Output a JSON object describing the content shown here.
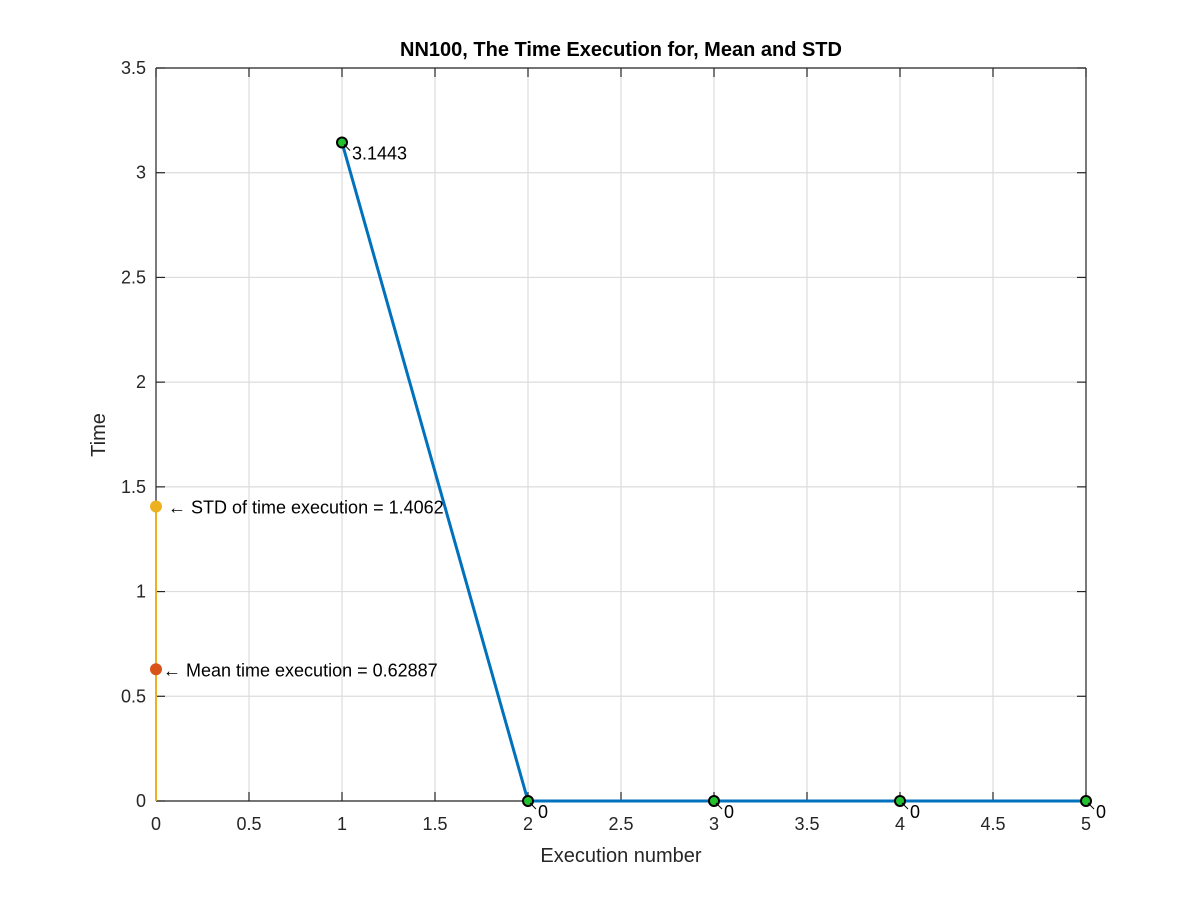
{
  "chart_data": {
    "type": "line",
    "title": "NN100, The Time Execution for, Mean and STD",
    "xlabel": "Execution number",
    "ylabel": "Time",
    "xlim": [
      0,
      5
    ],
    "ylim": [
      0,
      3.5
    ],
    "grid": true,
    "xticks": [
      0,
      0.5,
      1,
      1.5,
      2,
      2.5,
      3,
      3.5,
      4,
      4.5,
      5
    ],
    "xtick_labels": [
      "0",
      "0.5",
      "1",
      "1.5",
      "2",
      "2.5",
      "3",
      "3.5",
      "4",
      "4.5",
      "5"
    ],
    "yticks": [
      0,
      0.5,
      1,
      1.5,
      2,
      2.5,
      3,
      3.5
    ],
    "ytick_labels": [
      "0",
      "0.5",
      "1",
      "1.5",
      "2",
      "2.5",
      "3",
      "3.5"
    ],
    "series": [
      {
        "x": [
          1,
          2,
          3,
          4,
          5
        ],
        "values": [
          3.1443,
          0,
          0,
          0,
          0
        ],
        "point_labels": [
          "3.1443",
          "0",
          "0",
          "0",
          "0"
        ],
        "color": "#0072BD",
        "marker_fill": "#22C22E",
        "marker_edge": "#000000"
      }
    ],
    "stats": {
      "std": {
        "value": 1.4062,
        "label": "← STD of time execution = 1.4062",
        "color": "#EDB120"
      },
      "mean": {
        "value": 0.62887,
        "label": "← Mean time execution = 0.62887",
        "color": "#D95319"
      }
    }
  }
}
